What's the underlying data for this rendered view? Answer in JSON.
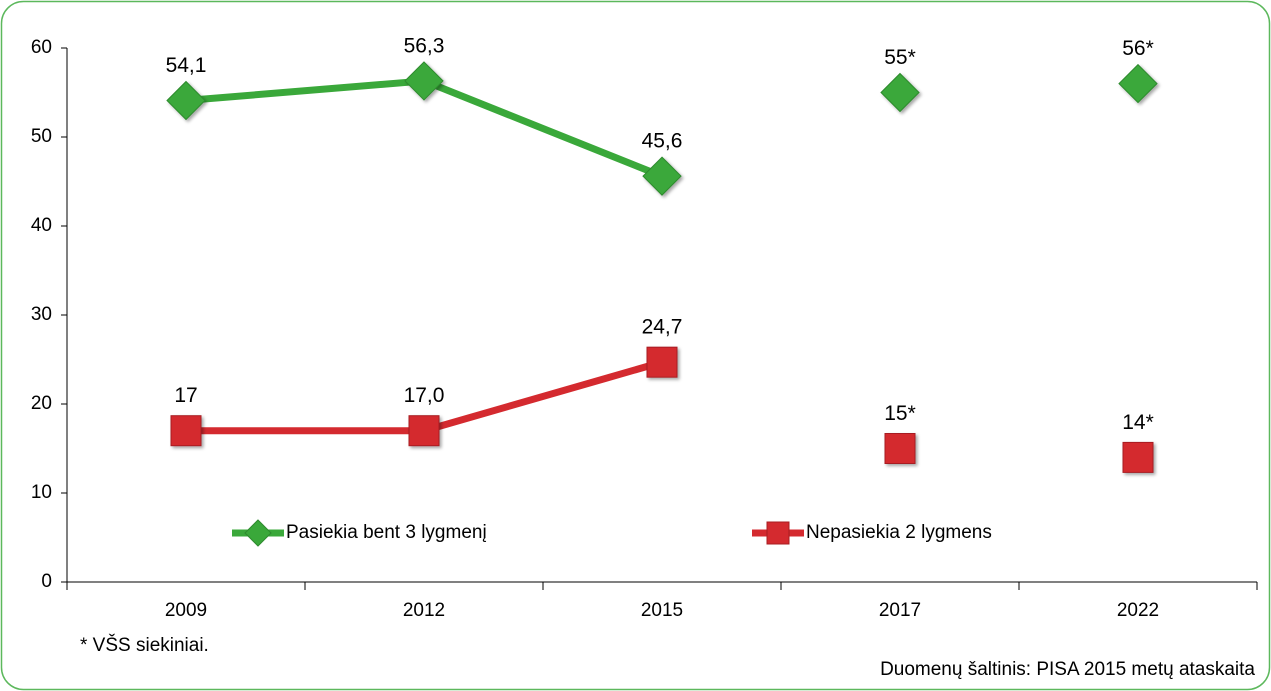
{
  "chart_data": {
    "type": "line",
    "categories": [
      "2009",
      "2012",
      "2015",
      "2017",
      "2022"
    ],
    "series": [
      {
        "name": "Pasiekia bent 3 lygmenį",
        "color": "#3aa83a",
        "marker": "diamond",
        "values": [
          54.1,
          56.3,
          45.6,
          null,
          null
        ],
        "value_labels": [
          "54,1",
          "56,3",
          "45,6",
          null,
          null
        ],
        "target_values": [
          null,
          null,
          null,
          55,
          56
        ],
        "target_value_labels": [
          null,
          null,
          null,
          "55*",
          "56*"
        ]
      },
      {
        "name": "Nepasiekia 2 lygmens",
        "color": "#d42a2f",
        "marker": "square",
        "values": [
          17,
          17.0,
          24.7,
          null,
          null
        ],
        "value_labels": [
          "17",
          "17,0",
          "24,7",
          null,
          null
        ],
        "target_values": [
          null,
          null,
          null,
          15,
          14
        ],
        "target_value_labels": [
          null,
          null,
          null,
          "15*",
          "14*"
        ]
      }
    ],
    "ylim": [
      0,
      60
    ],
    "yticks": [
      0,
      10,
      20,
      30,
      40,
      50,
      60
    ],
    "grid": false,
    "footnote": "* VŠS siekiniai.",
    "source": "Duomenų šaltinis: PISA 2015 metų ataskaita"
  }
}
